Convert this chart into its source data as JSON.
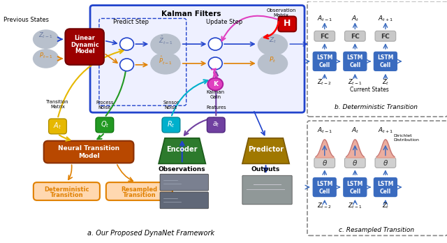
{
  "title_a": "a. Our Proposed DynaNet Framework",
  "title_b": "b. Deterministic Transition",
  "title_c": "c. Resampled Transition",
  "kalman_title": "Kalman Filters",
  "predict_step": "Predict Step",
  "update_step": "Update Step",
  "obs_matrix": "Observation\nMatrix",
  "previous_states": "Previous States",
  "current_states": "Current States",
  "kalman_gain_label": "Kalman\nGain",
  "transition_matrix": "Transition\nMatrix",
  "process_noise": "Process Noise",
  "sensor_noise": "Sensor\nNoise",
  "features_label": "Features",
  "bg_color": "#ffffff",
  "lstm_color": "#3a6bbf",
  "fc_color": "#c8c8c8",
  "dark_red": "#9b0000",
  "orange_arrows": "#e08000",
  "yellow_color": "#e6b800",
  "green_color": "#229922",
  "cyan_color": "#00b0cc",
  "purple_color": "#7040a0",
  "encoder_color": "#2d7a2d",
  "predictor_color": "#a07800",
  "dark_orange_box": "#b84800",
  "salmon_color": "#e8a898",
  "gray_ellipse": "#b0bac8",
  "blue_border": "#2244cc",
  "magenta_color": "#e040c0",
  "red_color": "#cc0000"
}
